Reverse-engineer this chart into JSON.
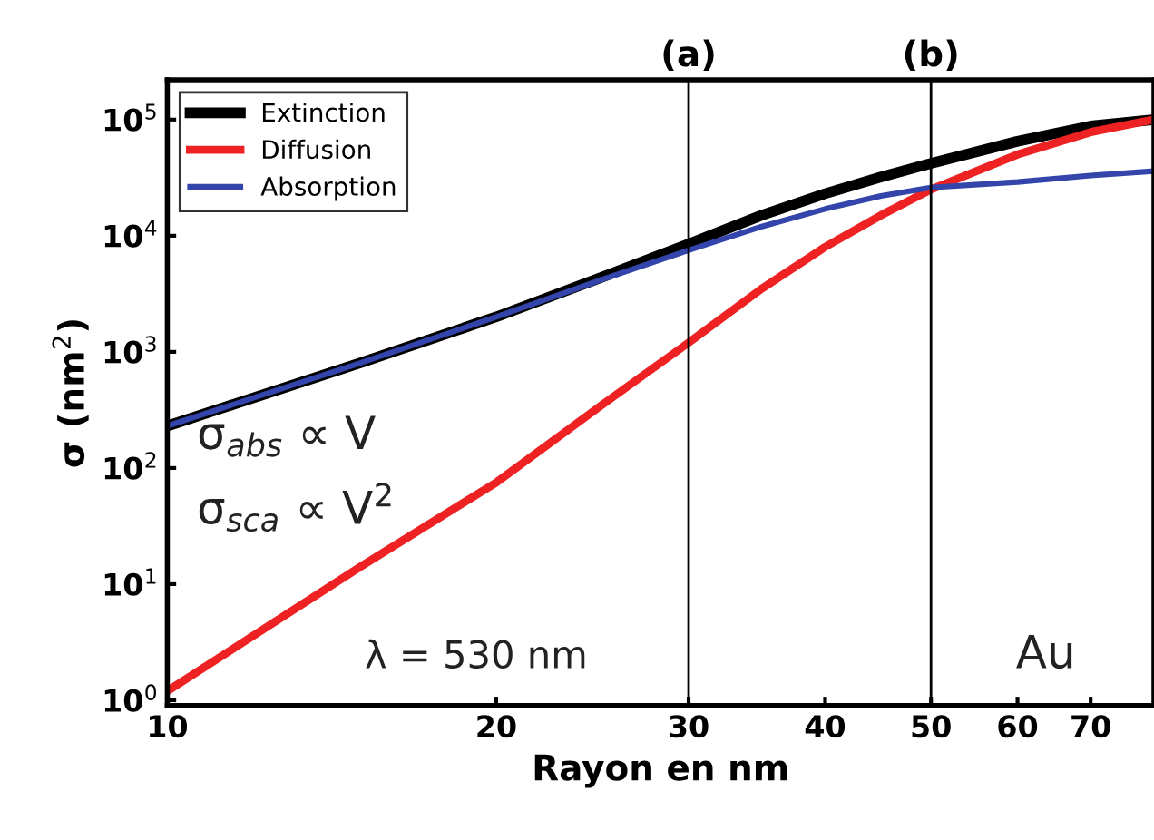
{
  "chart_data": {
    "type": "line",
    "xlabel": "Rayon en nm",
    "ylabel": "σ (nm$^{2}$)",
    "log": "xy",
    "x": [
      10,
      15,
      20,
      25,
      30,
      35,
      40,
      45,
      50,
      60,
      70,
      80
    ],
    "series": [
      {
        "name": "Extinction",
        "color": "#000000",
        "values": [
          230,
          800,
          2000,
          4400,
          8500,
          15000,
          23000,
          32000,
          42000,
          65000,
          88000,
          100000
        ]
      },
      {
        "name": "Diffusion",
        "color": "#ee2222",
        "values": [
          1.2,
          14,
          75,
          350,
          1200,
          3500,
          8000,
          15000,
          25000,
          50000,
          78000,
          100000
        ]
      },
      {
        "name": "Absorption",
        "color": "#3344aa",
        "values": [
          230,
          800,
          2000,
          4200,
          7500,
          12000,
          17000,
          22000,
          26000,
          29000,
          33000,
          36000
        ]
      }
    ],
    "xlim": [
      10,
      80
    ],
    "ylim": [
      0.9,
      220000
    ],
    "xticks": [
      10,
      20,
      30,
      40,
      50,
      60,
      70
    ],
    "yticks": [
      {
        "value": 1,
        "label": "10$^{0}$"
      },
      {
        "value": 10,
        "label": "10$^{1}$"
      },
      {
        "value": 100,
        "label": "10$^{2}$"
      },
      {
        "value": 1000,
        "label": "10$^{3}$"
      },
      {
        "value": 10000,
        "label": "10$^{4}$"
      },
      {
        "value": 100000,
        "label": "10$^{5}$"
      }
    ],
    "ref_lines": [
      {
        "axis": "x",
        "value": 30,
        "label": "(a)",
        "color": "#000000"
      },
      {
        "axis": "x",
        "value": 50,
        "label": "(b)",
        "color": "#000000"
      }
    ],
    "annotations": [
      "σ$_{abs}$ ∝ V",
      "σ$_{sca}$ ∝ V$^{2}$",
      "λ = 530 nm",
      "Au"
    ],
    "legend": "top left",
    "grid": false,
    "marker": "none",
    "line_style": "solid"
  }
}
